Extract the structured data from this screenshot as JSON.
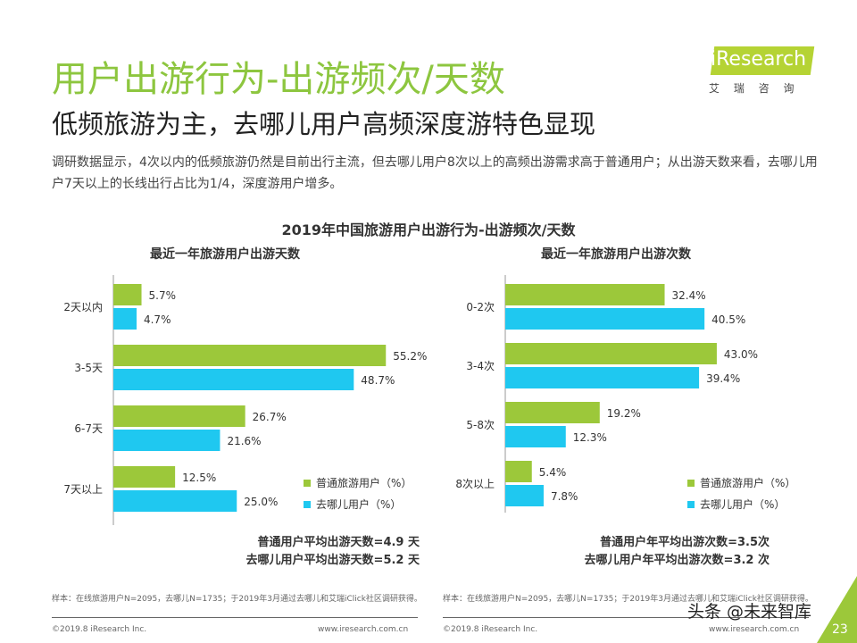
{
  "header": {
    "title": "用户出游行为-出游频次/天数",
    "subtitle": "低频旅游为主，去哪儿用户高频深度游特色显现",
    "description": "调研数据显示，4次以内的低频旅游仍然是目前出行主流，但去哪儿用户8次以上的高频出游需求高于普通用户；从出游天数来看，去哪儿用户7天以上的长线出行占比为1/4，深度游用户增多。",
    "logo_text": "iResearch",
    "logo_sub": "艾 瑞 咨 询"
  },
  "colors": {
    "green": "#9cc83a",
    "blue": "#1fc8f0",
    "title_green": "#8dc63f"
  },
  "chart_title": "2019年中国旅游用户出游行为-出游频次/天数",
  "chart_data": [
    {
      "type": "bar",
      "orientation": "horizontal",
      "title": "最近一年旅游用户出游天数",
      "categories": [
        "2天以内",
        "3-5天",
        "6-7天",
        "7天以上"
      ],
      "series": [
        {
          "name": "普通旅游用户（%）",
          "values": [
            5.7,
            55.2,
            26.7,
            12.5
          ]
        },
        {
          "name": "去哪儿用户（%）",
          "values": [
            4.7,
            48.7,
            21.6,
            25.0
          ]
        }
      ],
      "legend": "bottom-right",
      "summary": [
        "普通用户平均出游天数=4.9 天",
        "去哪儿用户平均出游天数=5.2 天"
      ]
    },
    {
      "type": "bar",
      "orientation": "horizontal",
      "title": "最近一年旅游用户出游次数",
      "categories": [
        "0-2次",
        "3-4次",
        "5-8次",
        "8次以上"
      ],
      "series": [
        {
          "name": "普通旅游用户（%）",
          "values": [
            32.4,
            43.0,
            19.2,
            5.4
          ]
        },
        {
          "name": "去哪儿用户（%）",
          "values": [
            40.5,
            39.4,
            12.3,
            7.8
          ]
        }
      ],
      "legend": "bottom-right",
      "summary": [
        "普通用户年平均出游次数=3.5次",
        "去哪儿用户年平均出游次数=3.2 次"
      ]
    }
  ],
  "footer": {
    "note": "样本：在线旅游用户N=2095，去哪儿N=1735；于2019年3月通过去哪儿和艾瑞iClick社区调研获得。",
    "copyright": "©2019.8 iResearch Inc.",
    "url": "www.iresearch.com.cn",
    "page": "23",
    "watermark": "头条 @未来智库"
  }
}
